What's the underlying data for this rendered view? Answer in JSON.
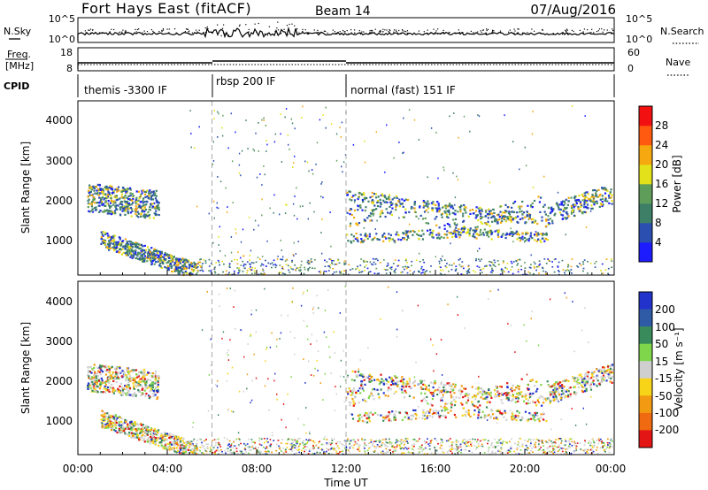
{
  "header": {
    "title": "Fort Hays East (fitACF)",
    "beam": "Beam 14",
    "date": "07/Aug/2016"
  },
  "noise_panel": {
    "left_label": "N.Sky",
    "right_label": "N.Search",
    "left_ticks": [
      "10^5",
      "10^0"
    ],
    "right_ticks": [
      "10^5",
      "10^0"
    ]
  },
  "freq_panel": {
    "left_label_line1": "Freq.",
    "left_label_line2": "[MHz]",
    "right_label": "Nave",
    "left_ticks": [
      "18",
      "8"
    ],
    "right_ticks": [
      "60",
      "0"
    ]
  },
  "cpid": {
    "label": "CPID",
    "segments": [
      {
        "label": "themis -3300 IF",
        "start_hour": 0,
        "end_hour": 6
      },
      {
        "label": "rbsp 200 IF",
        "start_hour": 6,
        "end_hour": 12
      },
      {
        "label": "normal (fast) 151 IF",
        "start_hour": 12,
        "end_hour": 24
      }
    ]
  },
  "x_axis": {
    "label": "Time UT",
    "ticks": [
      "00:00",
      "04:00",
      "08:00",
      "12:00",
      "16:00",
      "20:00",
      "00:00"
    ]
  },
  "chart_data": [
    {
      "type": "heatmap",
      "panel": "power",
      "ylabel": "Slant Range [km]",
      "ylim": [
        180,
        4500
      ],
      "xlim": [
        0,
        24
      ],
      "y_ticks": [
        "1000",
        "2000",
        "3000",
        "4000"
      ],
      "colorbar": {
        "label": "Power [dB]",
        "ticks": [
          "4",
          "8",
          "12",
          "16",
          "20",
          "24",
          "28"
        ],
        "colors": [
          "#1c1cff",
          "#2a4fb0",
          "#3e7f68",
          "#5f9d5a",
          "#e3e21a",
          "#f5a80f",
          "#ff5a10",
          "#f21010"
        ]
      },
      "scatter_regions": [
        {
          "t": [
            0.5,
            3.5
          ],
          "range": [
            1800,
            2500
          ]
        },
        {
          "t": [
            1.0,
            5.0
          ],
          "range": [
            300,
            1300
          ]
        },
        {
          "t": [
            12.0,
            23.9
          ],
          "range": [
            700,
            2500
          ]
        }
      ]
    },
    {
      "type": "heatmap",
      "panel": "velocity",
      "ylabel": "Slant Range [km]",
      "ylim": [
        180,
        4500
      ],
      "xlim": [
        0,
        24
      ],
      "y_ticks": [
        "1000",
        "2000",
        "3000",
        "4000"
      ],
      "colorbar": {
        "label": "Velocity [m s⁻¹]",
        "ticks": [
          "200",
          "100",
          "50",
          "15",
          "-15",
          "-50",
          "-100",
          "-200"
        ],
        "colors": [
          "#2233cc",
          "#2e5aa6",
          "#3a8b5b",
          "#7fd64a",
          "#cfcfcf",
          "#f7d417",
          "#f29a12",
          "#ef6a10",
          "#e31515"
        ]
      },
      "scatter_regions": [
        {
          "t": [
            0.5,
            3.5
          ],
          "range": [
            1800,
            2500
          ]
        },
        {
          "t": [
            1.0,
            5.0
          ],
          "range": [
            300,
            1300
          ]
        },
        {
          "t": [
            12.0,
            23.9
          ],
          "range": [
            700,
            2500
          ]
        },
        {
          "t": [
            7.0,
            23.0
          ],
          "range": [
            180,
            600
          ]
        }
      ]
    }
  ]
}
